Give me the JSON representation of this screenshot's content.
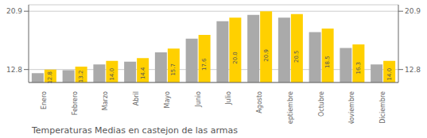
{
  "chart_data": {
    "type": "bar",
    "title": "Temperaturas Medias en castejon de las armas",
    "categories": [
      "Enero",
      "Febrero",
      "Marzo",
      "Abril",
      "Mayo",
      "Junio",
      "Julio",
      "Agosto",
      "Septiembre",
      "Octubre",
      "Noviembre",
      "Diciembre"
    ],
    "series": [
      {
        "color": "#AAAAAA",
        "values": [
          12.3,
          12.7,
          13.5,
          13.9,
          15.2,
          17.1,
          19.5,
          20.4,
          20.0,
          18.0,
          15.8,
          13.5
        ]
      },
      {
        "color": "#FFD000",
        "values": [
          12.8,
          13.2,
          14.0,
          14.4,
          15.7,
          17.6,
          20.0,
          20.9,
          20.5,
          18.5,
          16.3,
          14.0
        ],
        "data_labels": true,
        "value_labels": [
          "12.8",
          "13.2",
          "14.0",
          "14.4",
          "15.7",
          "17.6",
          "20.0",
          "20.9",
          "20.5",
          "18.5",
          "16.3",
          "14.0"
        ]
      }
    ],
    "ylim": [
      11.0,
      21.8
    ],
    "yticks": [
      12.8,
      20.9
    ],
    "y2lim": [
      11.0,
      21.8
    ],
    "y2ticks": [
      12.8,
      20.9
    ],
    "grid": true
  }
}
